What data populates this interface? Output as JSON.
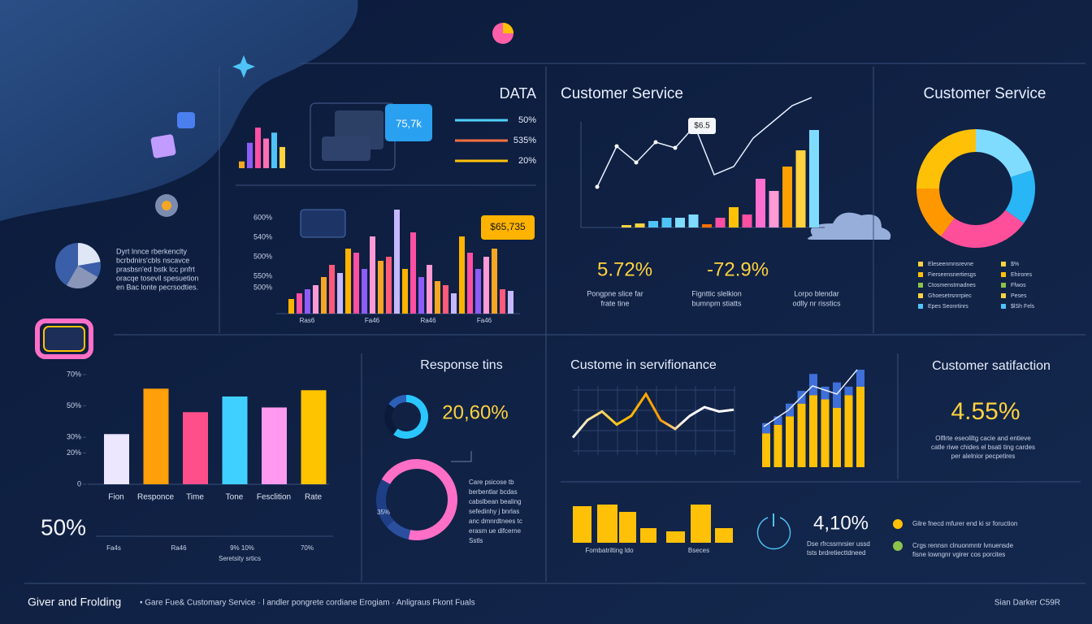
{
  "sidebar": {
    "lines": [
      "Dyrt lnnce rberkenclty",
      "bcrbdnirs'cbls nscavce",
      "prasbsn'ed bstk lcc pnfrt",
      "oracqe tosevil spesuetion",
      "en Bac lonte pecrsodties."
    ]
  },
  "data_panel": {
    "title": "DATA",
    "bubble": "75,7k",
    "legend": [
      {
        "label": "50%",
        "color": "#4fd1ff"
      },
      {
        "label": "535%",
        "color": "#ff7043"
      },
      {
        "label": "20%",
        "color": "#ffc107"
      }
    ],
    "bars": {
      "values": [
        8,
        30,
        48,
        35,
        42,
        25
      ],
      "colors": [
        "#f5a623",
        "#8e5cf7",
        "#ff4fa3",
        "#ff6fb5",
        "#4fc3f7",
        "#ffd23f"
      ]
    }
  },
  "main_chart": {
    "y_labels": [
      "600%",
      "540%",
      "500%",
      "550%",
      "500%"
    ],
    "x_labels": [
      "Ras6",
      "Fa46",
      "Ra46",
      "Fa46"
    ],
    "bubble": "$65,735",
    "values": [
      18,
      25,
      30,
      35,
      45,
      60,
      50,
      80,
      75,
      55,
      95,
      65,
      70,
      128,
      55,
      100,
      45,
      60,
      40,
      35,
      25,
      95,
      75,
      55,
      70,
      80,
      30,
      28
    ],
    "palette": [
      "#ffb300",
      "#ff4fa3",
      "#8e5cf7",
      "#ff9ad5",
      "#f5a623",
      "#ff5a7a",
      "#c6b8ff"
    ]
  },
  "service_trend": {
    "title": "Customer Service",
    "label": "$6.5",
    "line": {
      "values": [
        50,
        100,
        80,
        105,
        98,
        125,
        65,
        75,
        110,
        130,
        150,
        160
      ],
      "color": "#e8eefc"
    },
    "bars": {
      "values": [
        3,
        5,
        8,
        12,
        12,
        16,
        4,
        12,
        25,
        16,
        60,
        45,
        75,
        95,
        120
      ],
      "colors": [
        "#ffd23f",
        "#ffd23f",
        "#4fc3f7",
        "#4fc3f7",
        "#7fdcff",
        "#7fdcff",
        "#ff6f00",
        "#ff4fa3",
        "#ffc107",
        "#ff4fa3",
        "#ff6fd0",
        "#ff9ad5",
        "#ffa000",
        "#ffd23f",
        "#7fdcff"
      ]
    }
  },
  "stats": [
    {
      "value": "5.72%",
      "lines": [
        "Pongpne slice far",
        "frate tine"
      ]
    },
    {
      "value": "-72.9%",
      "lines": [
        "Fignttic slelkion",
        "bumnpm stiatts"
      ]
    },
    {
      "value": "",
      "lines": [
        "Lorpo blendar",
        "odlly nr risstics"
      ]
    }
  ],
  "service_donut": {
    "title": "Customer Service",
    "values": [
      25,
      20,
      15,
      25,
      15
    ],
    "colors": [
      "#ffc107",
      "#7fdcff",
      "#29b6f6",
      "#ff4f9a",
      "#ff9800"
    ],
    "legend_left": [
      "Eleseenmnsrevne",
      "Fierseensnertiesgs",
      "Ctosmenstrnadnes",
      "Ghoesetrsnrrpiec",
      "Epes Seonrtinrs"
    ],
    "legend_right": [
      "$%",
      "Ehirores",
      "Ffwos",
      "Peses",
      "$lSh Fels"
    ],
    "legend_colors": [
      "#ffd23f",
      "#ffc107",
      "#8bc34a",
      "#ffd23f",
      "#4fc3f7"
    ]
  },
  "rates_chart": {
    "categories": [
      "Fion",
      "Responce",
      "Time",
      "Tone",
      "Fesclition",
      "Rate"
    ],
    "values": [
      32,
      61,
      46,
      56,
      49,
      60
    ],
    "colors": [
      "#ece6ff",
      "#ff9f0a",
      "#ff4f8b",
      "#40d0ff",
      "#ff9af0",
      "#ffc400"
    ],
    "ylim": [
      0,
      70
    ],
    "yticks": [
      0,
      {
        "value": 20,
        "label": "20%"
      },
      {
        "value": 30,
        "label": "30%"
      },
      {
        "value": 50,
        "label": "50%"
      },
      {
        "value": 70,
        "label": "70%"
      }
    ]
  },
  "big_stat": "50%",
  "axis_labels": [
    "Fa4s",
    "Ra46",
    "9% 10%",
    "70%"
  ],
  "axis_caption": "Seretsity srtics",
  "response": {
    "title": "Response tins",
    "value": "20,60%",
    "ring_label": "35%",
    "gauge": {
      "values": [
        60,
        25,
        15
      ],
      "colors": [
        "#29c6ff",
        "#0b1a38",
        "#2b5fb8"
      ]
    },
    "ring": {
      "values": [
        70,
        10,
        20
      ],
      "colors": [
        "#ff6fc8",
        "#2b4f9e",
        "#1e3f86"
      ]
    },
    "lines": [
      "Care psicose tb",
      "berbentlar bcdas",
      "cabslbean bealing",
      "sefedinhy j bnrlas",
      "anc dmnrdtnees tc",
      "erasm ue difcerne",
      "Sstls"
    ]
  },
  "performance": {
    "title": "Custome in servifionance",
    "line": {
      "values": [
        20,
        40,
        50,
        35,
        45,
        70,
        40,
        30,
        45,
        55,
        50,
        52
      ]
    },
    "stacks": {
      "base": [
        40,
        50,
        60,
        75,
        85,
        80,
        70,
        85,
        95
      ],
      "top": [
        12,
        10,
        15,
        15,
        25,
        15,
        30,
        10,
        20
      ],
      "colors": [
        "#ffc107",
        "#3f6fd8"
      ]
    }
  },
  "satisfaction": {
    "title": "Customer satifaction",
    "value": "4.55%",
    "lines": [
      "Olflrte eseoliltg cacie and entieve",
      "catle riwe chides el bsati ting cardes",
      "per alelnior pecpetires"
    ]
  },
  "volume": {
    "values": [
      45,
      47,
      38,
      18,
      14,
      47,
      18
    ],
    "color": "#ffc107",
    "labels": [
      "Fombatrilting ldo",
      "Bseces"
    ],
    "value": "4,10%",
    "lines": [
      "Dse rfrcssrnrsier ussd",
      "tsts brdretiecttdneed"
    ],
    "legend": [
      {
        "lines": [
          "Gilre fnecd mfurer end ki sr foruction"
        ],
        "color": "#ffc107"
      },
      {
        "lines": [
          "Crgs rennsn clnuonmntr lvnuensde",
          "fisne lowngnr vgirer cos porcites"
        ],
        "color": "#8bc34a"
      }
    ]
  },
  "footer": {
    "title": "Giver and Frolding",
    "text": "• Gare Fue& Customary Service · l andler pongrete cordiane Erogiam · Anligraus Fkont Fuals",
    "right": "Sian Darker C59R"
  }
}
